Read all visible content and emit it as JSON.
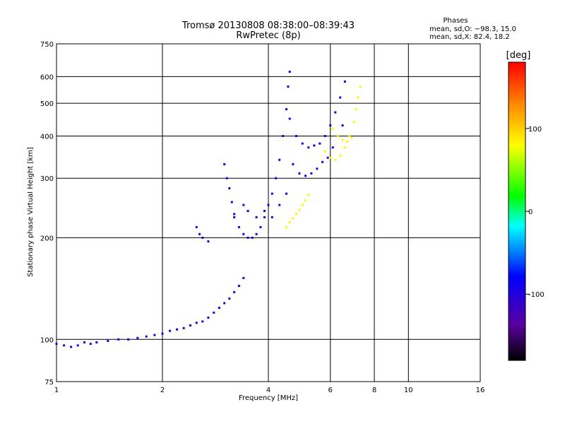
{
  "chart_data": {
    "type": "scatter",
    "title": "Tromsø 20130808 08:38:00–08:39:43",
    "subtitle": "RwPretec (8p)",
    "xlabel": "Frequency [MHz]",
    "ylabel": "Stationary phase Virtual Height [km]",
    "x_scale": "log",
    "y_scale": "log",
    "xlim": [
      1,
      16
    ],
    "ylim": [
      75,
      750
    ],
    "x_ticks": [
      1,
      2,
      4,
      6,
      8,
      10,
      16
    ],
    "y_ticks": [
      75,
      100,
      200,
      300,
      400,
      500,
      600,
      750
    ],
    "grid": true,
    "phase_box": {
      "title": "Phases",
      "line_o": "mean, sd,O:  −98.3, 15.0",
      "line_x": "mean, sd,X:  82.4, 18.2"
    },
    "colorbar": {
      "label": "[deg]",
      "ticks": [
        100,
        0,
        -100
      ],
      "range": [
        -180,
        180
      ]
    },
    "series": [
      {
        "mode": "O",
        "phase_mean": -98.3,
        "phase_sd": 15.0,
        "points": [
          [
            1.0,
            97
          ],
          [
            1.05,
            96
          ],
          [
            1.1,
            95
          ],
          [
            1.15,
            96
          ],
          [
            1.2,
            98
          ],
          [
            1.25,
            97
          ],
          [
            1.3,
            98
          ],
          [
            1.4,
            99
          ],
          [
            1.5,
            100
          ],
          [
            1.6,
            100
          ],
          [
            1.7,
            101
          ],
          [
            1.8,
            102
          ],
          [
            1.9,
            103
          ],
          [
            2.0,
            104
          ],
          [
            2.1,
            106
          ],
          [
            2.2,
            107
          ],
          [
            2.3,
            108
          ],
          [
            2.4,
            110
          ],
          [
            2.5,
            112
          ],
          [
            2.6,
            113
          ],
          [
            2.7,
            116
          ],
          [
            2.8,
            120
          ],
          [
            2.9,
            124
          ],
          [
            3.0,
            128
          ],
          [
            3.1,
            132
          ],
          [
            3.2,
            138
          ],
          [
            3.3,
            144
          ],
          [
            3.4,
            152
          ],
          [
            2.5,
            215
          ],
          [
            2.55,
            205
          ],
          [
            2.6,
            200
          ],
          [
            2.7,
            195
          ],
          [
            3.0,
            330
          ],
          [
            3.05,
            300
          ],
          [
            3.1,
            280
          ],
          [
            3.15,
            255
          ],
          [
            3.2,
            235
          ],
          [
            3.3,
            215
          ],
          [
            3.4,
            205
          ],
          [
            3.5,
            200
          ],
          [
            3.6,
            200
          ],
          [
            3.7,
            205
          ],
          [
            3.8,
            215
          ],
          [
            3.9,
            230
          ],
          [
            4.0,
            250
          ],
          [
            4.1,
            270
          ],
          [
            4.2,
            300
          ],
          [
            4.3,
            340
          ],
          [
            4.4,
            400
          ],
          [
            4.5,
            480
          ],
          [
            4.55,
            560
          ],
          [
            4.6,
            620
          ],
          [
            3.2,
            230
          ],
          [
            3.4,
            250
          ],
          [
            3.5,
            240
          ],
          [
            3.7,
            230
          ],
          [
            3.9,
            240
          ],
          [
            4.1,
            230
          ],
          [
            4.3,
            250
          ],
          [
            4.5,
            270
          ],
          [
            4.6,
            450
          ],
          [
            4.8,
            400
          ],
          [
            5.0,
            380
          ],
          [
            5.2,
            370
          ],
          [
            5.4,
            375
          ],
          [
            5.6,
            380
          ],
          [
            5.8,
            400
          ],
          [
            6.0,
            430
          ],
          [
            6.2,
            470
          ],
          [
            6.4,
            520
          ],
          [
            6.6,
            580
          ],
          [
            4.7,
            330
          ],
          [
            4.9,
            310
          ],
          [
            5.1,
            305
          ],
          [
            5.3,
            310
          ],
          [
            5.5,
            320
          ],
          [
            5.7,
            335
          ],
          [
            5.9,
            345
          ],
          [
            6.1,
            370
          ],
          [
            6.3,
            400
          ],
          [
            6.5,
            430
          ]
        ]
      },
      {
        "mode": "X",
        "phase_mean": 82.4,
        "phase_sd": 18.2,
        "points": [
          [
            4.5,
            215
          ],
          [
            4.6,
            222
          ],
          [
            4.7,
            228
          ],
          [
            4.8,
            235
          ],
          [
            4.9,
            242
          ],
          [
            5.0,
            250
          ],
          [
            5.1,
            258
          ],
          [
            5.2,
            268
          ],
          [
            5.8,
            360
          ],
          [
            6.0,
            345
          ],
          [
            6.2,
            340
          ],
          [
            6.4,
            350
          ],
          [
            6.6,
            370
          ],
          [
            6.8,
            400
          ],
          [
            7.0,
            440
          ],
          [
            7.1,
            480
          ],
          [
            7.2,
            520
          ],
          [
            7.3,
            560
          ],
          [
            6.1,
            420
          ],
          [
            6.3,
            400
          ],
          [
            6.5,
            390
          ],
          [
            6.7,
            385
          ],
          [
            6.9,
            395
          ]
        ]
      }
    ]
  }
}
